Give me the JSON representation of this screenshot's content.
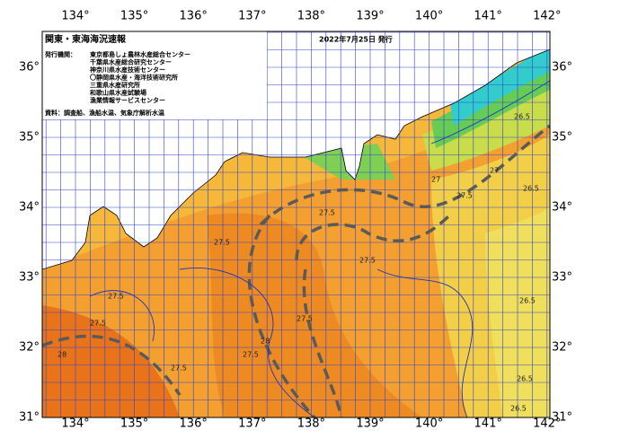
{
  "header": {
    "title": "関東・東海海況速報",
    "date": "2022年7月25日 発行",
    "issuers_label": "発行機関：",
    "issuers": [
      "東京都島しょ農林水産総合センター",
      "千葉県水産総合研究センター",
      "神奈川県水産技術センター",
      "〇静岡県水産・海洋技術研究所",
      "三重県水産研究所",
      "和歌山県水産試験場",
      "漁業情報サービスセンター"
    ],
    "source": "資料：調査船、漁船水温、気象庁解析水温"
  },
  "map": {
    "lon_ticks": [
      {
        "value": 134,
        "label": "134°"
      },
      {
        "value": 135,
        "label": "135°"
      },
      {
        "value": 136,
        "label": "136°"
      },
      {
        "value": 137,
        "label": "137°"
      },
      {
        "value": 138,
        "label": "138°"
      },
      {
        "value": 139,
        "label": "139°"
      },
      {
        "value": 140,
        "label": "140°"
      },
      {
        "value": 141,
        "label": "141°"
      },
      {
        "value": 142,
        "label": "142°"
      }
    ],
    "lat_ticks": [
      {
        "value": 31,
        "label": "31°"
      },
      {
        "value": 32,
        "label": "32°"
      },
      {
        "value": 33,
        "label": "33°"
      },
      {
        "value": 34,
        "label": "34°"
      },
      {
        "value": 35,
        "label": "35°"
      },
      {
        "value": 36,
        "label": "36°"
      }
    ],
    "isotherm_labels": [
      "27.5",
      "27.5",
      "27.5",
      "27.5",
      "27.5",
      "27.5",
      "27.5",
      "28",
      "28",
      "27.5",
      "26.5",
      "26.5",
      "26.5",
      "26.5",
      "26.5",
      "27",
      "27",
      "27.5"
    ]
  }
}
